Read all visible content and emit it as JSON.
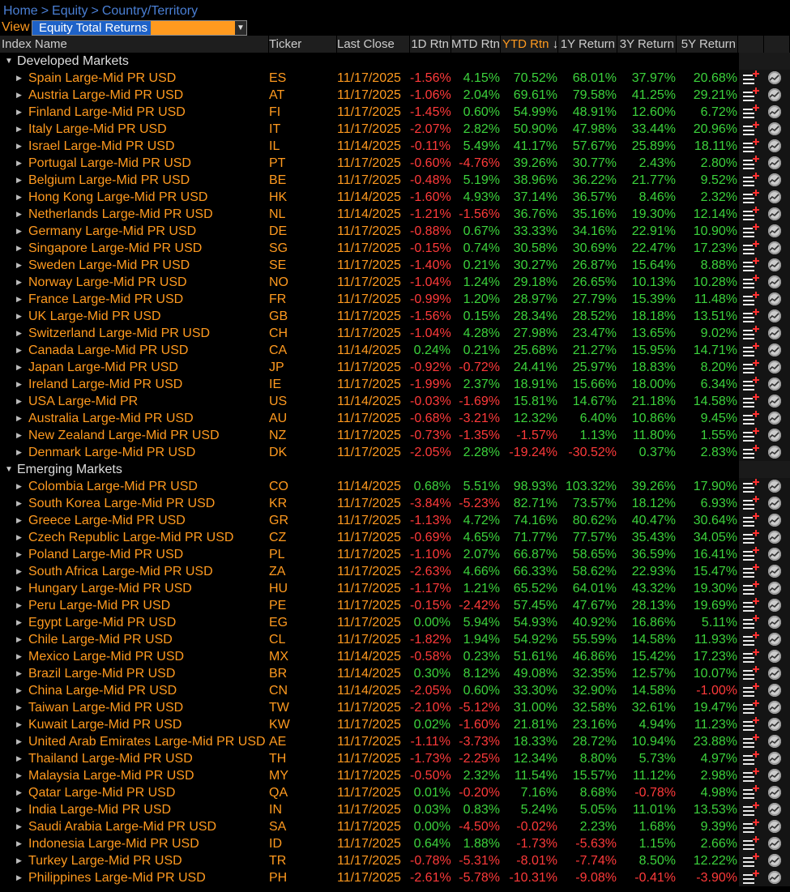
{
  "breadcrumb": [
    "Home",
    "Equity",
    "Country/Territory"
  ],
  "view": {
    "label": "View",
    "selected": "Equity Total Returns"
  },
  "columns": [
    "Index Name",
    "Ticker",
    "Last Close",
    "1D Rtn",
    "MTD Rtn",
    "YTD Rtn",
    "1Y Return",
    "3Y Return",
    "5Y Return"
  ],
  "sort_indicator": "↓",
  "groups": [
    {
      "name": "Developed Markets",
      "rows": [
        {
          "name": "Spain Large-Mid PR USD",
          "ticker": "ES",
          "date": "11/17/2025",
          "d1": "-1.56%",
          "mtd": "4.15%",
          "ytd": "70.52%",
          "y1": "68.01%",
          "y3": "37.97%",
          "y5": "20.68%"
        },
        {
          "name": "Austria Large-Mid PR USD",
          "ticker": "AT",
          "date": "11/17/2025",
          "d1": "-1.06%",
          "mtd": "2.04%",
          "ytd": "69.61%",
          "y1": "79.58%",
          "y3": "41.25%",
          "y5": "29.21%"
        },
        {
          "name": "Finland Large-Mid PR USD",
          "ticker": "FI",
          "date": "11/17/2025",
          "d1": "-1.45%",
          "mtd": "0.60%",
          "ytd": "54.99%",
          "y1": "48.91%",
          "y3": "12.60%",
          "y5": "6.72%"
        },
        {
          "name": "Italy Large-Mid PR USD",
          "ticker": "IT",
          "date": "11/17/2025",
          "d1": "-2.07%",
          "mtd": "2.82%",
          "ytd": "50.90%",
          "y1": "47.98%",
          "y3": "33.44%",
          "y5": "20.96%"
        },
        {
          "name": "Israel Large-Mid PR USD",
          "ticker": "IL",
          "date": "11/14/2025",
          "d1": "-0.11%",
          "mtd": "5.49%",
          "ytd": "41.17%",
          "y1": "57.67%",
          "y3": "25.89%",
          "y5": "18.11%"
        },
        {
          "name": "Portugal Large-Mid PR USD",
          "ticker": "PT",
          "date": "11/17/2025",
          "d1": "-0.60%",
          "mtd": "-4.76%",
          "ytd": "39.26%",
          "y1": "30.77%",
          "y3": "2.43%",
          "y5": "2.80%"
        },
        {
          "name": "Belgium Large-Mid PR USD",
          "ticker": "BE",
          "date": "11/17/2025",
          "d1": "-0.48%",
          "mtd": "5.19%",
          "ytd": "38.96%",
          "y1": "36.22%",
          "y3": "21.77%",
          "y5": "9.52%"
        },
        {
          "name": "Hong Kong Large-Mid PR USD",
          "ticker": "HK",
          "date": "11/14/2025",
          "d1": "-1.60%",
          "mtd": "4.93%",
          "ytd": "37.14%",
          "y1": "36.57%",
          "y3": "8.46%",
          "y5": "2.32%"
        },
        {
          "name": "Netherlands Large-Mid PR USD",
          "ticker": "NL",
          "date": "11/14/2025",
          "d1": "-1.21%",
          "mtd": "-1.56%",
          "ytd": "36.76%",
          "y1": "35.16%",
          "y3": "19.30%",
          "y5": "12.14%"
        },
        {
          "name": "Germany Large-Mid PR USD",
          "ticker": "DE",
          "date": "11/17/2025",
          "d1": "-0.88%",
          "mtd": "0.67%",
          "ytd": "33.33%",
          "y1": "34.16%",
          "y3": "22.91%",
          "y5": "10.90%"
        },
        {
          "name": "Singapore Large-Mid PR USD",
          "ticker": "SG",
          "date": "11/17/2025",
          "d1": "-0.15%",
          "mtd": "0.74%",
          "ytd": "30.58%",
          "y1": "30.69%",
          "y3": "22.47%",
          "y5": "17.23%"
        },
        {
          "name": "Sweden Large-Mid PR USD",
          "ticker": "SE",
          "date": "11/17/2025",
          "d1": "-1.40%",
          "mtd": "0.21%",
          "ytd": "30.27%",
          "y1": "26.87%",
          "y3": "15.64%",
          "y5": "8.88%"
        },
        {
          "name": "Norway Large-Mid PR USD",
          "ticker": "NO",
          "date": "11/17/2025",
          "d1": "-1.04%",
          "mtd": "1.24%",
          "ytd": "29.18%",
          "y1": "26.65%",
          "y3": "10.13%",
          "y5": "10.28%"
        },
        {
          "name": "France Large-Mid PR USD",
          "ticker": "FR",
          "date": "11/17/2025",
          "d1": "-0.99%",
          "mtd": "1.20%",
          "ytd": "28.97%",
          "y1": "27.79%",
          "y3": "15.39%",
          "y5": "11.48%"
        },
        {
          "name": "UK Large-Mid PR USD",
          "ticker": "GB",
          "date": "11/17/2025",
          "d1": "-1.56%",
          "mtd": "0.15%",
          "ytd": "28.34%",
          "y1": "28.52%",
          "y3": "18.18%",
          "y5": "13.51%"
        },
        {
          "name": "Switzerland Large-Mid PR USD",
          "ticker": "CH",
          "date": "11/17/2025",
          "d1": "-1.04%",
          "mtd": "4.28%",
          "ytd": "27.98%",
          "y1": "23.47%",
          "y3": "13.65%",
          "y5": "9.02%"
        },
        {
          "name": "Canada Large-Mid PR USD",
          "ticker": "CA",
          "date": "11/14/2025",
          "d1": "0.24%",
          "mtd": "0.21%",
          "ytd": "25.68%",
          "y1": "21.27%",
          "y3": "15.95%",
          "y5": "14.71%"
        },
        {
          "name": "Japan Large-Mid PR USD",
          "ticker": "JP",
          "date": "11/17/2025",
          "d1": "-0.92%",
          "mtd": "-0.72%",
          "ytd": "24.41%",
          "y1": "25.97%",
          "y3": "18.83%",
          "y5": "8.20%"
        },
        {
          "name": "Ireland Large-Mid PR USD",
          "ticker": "IE",
          "date": "11/17/2025",
          "d1": "-1.99%",
          "mtd": "2.37%",
          "ytd": "18.91%",
          "y1": "15.66%",
          "y3": "18.00%",
          "y5": "6.34%"
        },
        {
          "name": "USA Large-Mid PR",
          "ticker": "US",
          "date": "11/14/2025",
          "d1": "-0.03%",
          "mtd": "-1.69%",
          "ytd": "15.81%",
          "y1": "14.67%",
          "y3": "21.18%",
          "y5": "14.58%"
        },
        {
          "name": "Australia Large-Mid PR USD",
          "ticker": "AU",
          "date": "11/17/2025",
          "d1": "-0.68%",
          "mtd": "-3.21%",
          "ytd": "12.32%",
          "y1": "6.40%",
          "y3": "10.86%",
          "y5": "9.45%"
        },
        {
          "name": "New Zealand Large-Mid PR USD",
          "ticker": "NZ",
          "date": "11/17/2025",
          "d1": "-0.73%",
          "mtd": "-1.35%",
          "ytd": "-1.57%",
          "y1": "1.13%",
          "y3": "11.80%",
          "y5": "1.55%"
        },
        {
          "name": "Denmark Large-Mid PR USD",
          "ticker": "DK",
          "date": "11/17/2025",
          "d1": "-2.05%",
          "mtd": "2.28%",
          "ytd": "-19.24%",
          "y1": "-30.52%",
          "y3": "0.37%",
          "y5": "2.83%"
        }
      ]
    },
    {
      "name": "Emerging Markets",
      "rows": [
        {
          "name": "Colombia Large-Mid PR USD",
          "ticker": "CO",
          "date": "11/14/2025",
          "d1": "0.68%",
          "mtd": "5.51%",
          "ytd": "98.93%",
          "y1": "103.32%",
          "y3": "39.26%",
          "y5": "17.90%"
        },
        {
          "name": "South Korea Large-Mid PR USD",
          "ticker": "KR",
          "date": "11/17/2025",
          "d1": "-3.84%",
          "mtd": "-5.23%",
          "ytd": "82.71%",
          "y1": "73.57%",
          "y3": "18.12%",
          "y5": "6.93%"
        },
        {
          "name": "Greece Large-Mid PR USD",
          "ticker": "GR",
          "date": "11/17/2025",
          "d1": "-1.13%",
          "mtd": "4.72%",
          "ytd": "74.16%",
          "y1": "80.62%",
          "y3": "40.47%",
          "y5": "30.64%"
        },
        {
          "name": "Czech Republic Large-Mid PR USD",
          "ticker": "CZ",
          "date": "11/17/2025",
          "d1": "-0.69%",
          "mtd": "4.65%",
          "ytd": "71.77%",
          "y1": "77.57%",
          "y3": "35.43%",
          "y5": "34.05%"
        },
        {
          "name": "Poland Large-Mid PR USD",
          "ticker": "PL",
          "date": "11/17/2025",
          "d1": "-1.10%",
          "mtd": "2.07%",
          "ytd": "66.87%",
          "y1": "58.65%",
          "y3": "36.59%",
          "y5": "16.41%"
        },
        {
          "name": "South Africa Large-Mid PR USD",
          "ticker": "ZA",
          "date": "11/17/2025",
          "d1": "-2.63%",
          "mtd": "4.66%",
          "ytd": "66.33%",
          "y1": "58.62%",
          "y3": "22.93%",
          "y5": "15.47%"
        },
        {
          "name": "Hungary Large-Mid PR USD",
          "ticker": "HU",
          "date": "11/17/2025",
          "d1": "-1.17%",
          "mtd": "1.21%",
          "ytd": "65.52%",
          "y1": "64.01%",
          "y3": "43.32%",
          "y5": "19.30%"
        },
        {
          "name": "Peru Large-Mid PR USD",
          "ticker": "PE",
          "date": "11/17/2025",
          "d1": "-0.15%",
          "mtd": "-2.42%",
          "ytd": "57.45%",
          "y1": "47.67%",
          "y3": "28.13%",
          "y5": "19.69%"
        },
        {
          "name": "Egypt Large-Mid PR USD",
          "ticker": "EG",
          "date": "11/17/2025",
          "d1": "0.00%",
          "mtd": "5.94%",
          "ytd": "54.93%",
          "y1": "40.92%",
          "y3": "16.86%",
          "y5": "5.11%"
        },
        {
          "name": "Chile Large-Mid PR USD",
          "ticker": "CL",
          "date": "11/17/2025",
          "d1": "-1.82%",
          "mtd": "1.94%",
          "ytd": "54.92%",
          "y1": "55.59%",
          "y3": "14.58%",
          "y5": "11.93%"
        },
        {
          "name": "Mexico Large-Mid PR USD",
          "ticker": "MX",
          "date": "11/14/2025",
          "d1": "-0.58%",
          "mtd": "0.23%",
          "ytd": "51.61%",
          "y1": "46.86%",
          "y3": "15.42%",
          "y5": "17.23%"
        },
        {
          "name": "Brazil Large-Mid PR USD",
          "ticker": "BR",
          "date": "11/14/2025",
          "d1": "0.30%",
          "mtd": "8.12%",
          "ytd": "49.08%",
          "y1": "32.35%",
          "y3": "12.57%",
          "y5": "10.07%"
        },
        {
          "name": "China Large-Mid PR USD",
          "ticker": "CN",
          "date": "11/14/2025",
          "d1": "-2.05%",
          "mtd": "0.60%",
          "ytd": "33.30%",
          "y1": "32.90%",
          "y3": "14.58%",
          "y5": "-1.00%"
        },
        {
          "name": "Taiwan Large-Mid PR USD",
          "ticker": "TW",
          "date": "11/17/2025",
          "d1": "-2.10%",
          "mtd": "-5.12%",
          "ytd": "31.00%",
          "y1": "32.58%",
          "y3": "32.61%",
          "y5": "19.47%"
        },
        {
          "name": "Kuwait Large-Mid PR USD",
          "ticker": "KW",
          "date": "11/17/2025",
          "d1": "0.02%",
          "mtd": "-1.60%",
          "ytd": "21.81%",
          "y1": "23.16%",
          "y3": "4.94%",
          "y5": "11.23%"
        },
        {
          "name": "United Arab Emirates Large-Mid PR USD",
          "ticker": "AE",
          "date": "11/17/2025",
          "d1": "-1.11%",
          "mtd": "-3.73%",
          "ytd": "18.33%",
          "y1": "28.72%",
          "y3": "10.94%",
          "y5": "23.88%"
        },
        {
          "name": "Thailand Large-Mid PR USD",
          "ticker": "TH",
          "date": "11/17/2025",
          "d1": "-1.73%",
          "mtd": "-2.25%",
          "ytd": "12.34%",
          "y1": "8.80%",
          "y3": "5.73%",
          "y5": "4.97%"
        },
        {
          "name": "Malaysia Large-Mid PR USD",
          "ticker": "MY",
          "date": "11/17/2025",
          "d1": "-0.50%",
          "mtd": "2.32%",
          "ytd": "11.54%",
          "y1": "15.57%",
          "y3": "11.12%",
          "y5": "2.98%"
        },
        {
          "name": "Qatar Large-Mid PR USD",
          "ticker": "QA",
          "date": "11/17/2025",
          "d1": "0.01%",
          "mtd": "-0.20%",
          "ytd": "7.16%",
          "y1": "8.68%",
          "y3": "-0.78%",
          "y5": "4.98%"
        },
        {
          "name": "India Large-Mid PR USD",
          "ticker": "IN",
          "date": "11/17/2025",
          "d1": "0.03%",
          "mtd": "0.83%",
          "ytd": "5.24%",
          "y1": "5.05%",
          "y3": "11.01%",
          "y5": "13.53%"
        },
        {
          "name": "Saudi Arabia Large-Mid PR USD",
          "ticker": "SA",
          "date": "11/17/2025",
          "d1": "0.00%",
          "mtd": "-4.50%",
          "ytd": "-0.02%",
          "y1": "2.23%",
          "y3": "1.68%",
          "y5": "9.39%"
        },
        {
          "name": "Indonesia Large-Mid PR USD",
          "ticker": "ID",
          "date": "11/17/2025",
          "d1": "0.64%",
          "mtd": "1.88%",
          "ytd": "-1.73%",
          "y1": "-5.63%",
          "y3": "1.15%",
          "y5": "2.66%"
        },
        {
          "name": "Turkey Large-Mid PR USD",
          "ticker": "TR",
          "date": "11/17/2025",
          "d1": "-0.78%",
          "mtd": "-5.31%",
          "ytd": "-8.01%",
          "y1": "-7.74%",
          "y3": "8.50%",
          "y5": "12.22%"
        },
        {
          "name": "Philippines Large-Mid PR USD",
          "ticker": "PH",
          "date": "11/17/2025",
          "d1": "-2.61%",
          "mtd": "-5.78%",
          "ytd": "-10.31%",
          "y1": "-9.08%",
          "y3": "-0.41%",
          "y5": "-3.90%"
        }
      ]
    }
  ]
}
